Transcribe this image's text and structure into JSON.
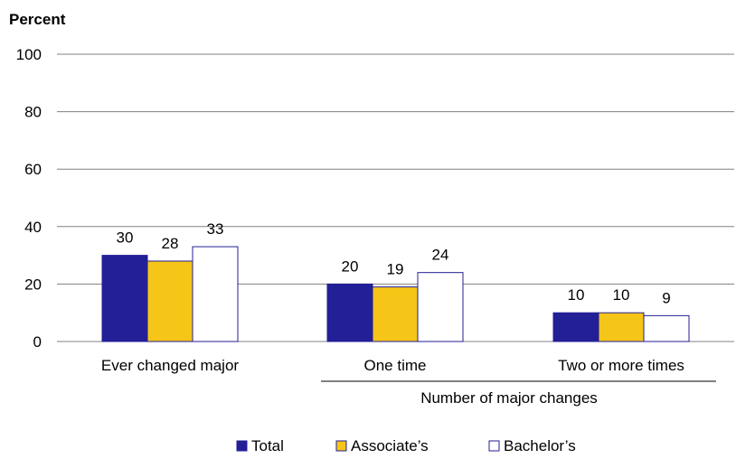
{
  "chart_data": {
    "type": "bar",
    "y_axis_title": "Percent",
    "ylim": [
      0,
      100
    ],
    "yticks": [
      0,
      20,
      40,
      60,
      80,
      100
    ],
    "grid": true,
    "categories": [
      "Ever changed major",
      "One time",
      "Two or more times"
    ],
    "group_label": "Number of major changes",
    "series": [
      {
        "name": "Total",
        "values": [
          30,
          20,
          10
        ],
        "color": "#231F96"
      },
      {
        "name": "Associate’s",
        "values": [
          28,
          19,
          10
        ],
        "color": "#F5C518"
      },
      {
        "name": "Bachelor’s",
        "values": [
          33,
          24,
          9
        ],
        "color": "#FFFFFF"
      }
    ],
    "data_labels": [
      [
        "30",
        "20",
        "10"
      ],
      [
        "28",
        "19",
        "10"
      ],
      [
        "33",
        "24",
        "9"
      ]
    ],
    "legend_placement": "bottom"
  }
}
